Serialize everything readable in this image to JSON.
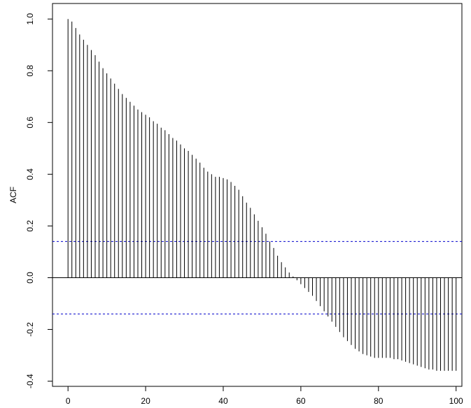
{
  "chart_data": {
    "type": "acf",
    "y_label": "ACF",
    "x": [
      0,
      1,
      2,
      3,
      4,
      5,
      6,
      7,
      8,
      9,
      10,
      11,
      12,
      13,
      14,
      15,
      16,
      17,
      18,
      19,
      20,
      21,
      22,
      23,
      24,
      25,
      26,
      27,
      28,
      29,
      30,
      31,
      32,
      33,
      34,
      35,
      36,
      37,
      38,
      39,
      40,
      41,
      42,
      43,
      44,
      45,
      46,
      47,
      48,
      49,
      50,
      51,
      52,
      53,
      54,
      55,
      56,
      57,
      58,
      59,
      60,
      61,
      62,
      63,
      64,
      65,
      66,
      67,
      68,
      69,
      70,
      71,
      72,
      73,
      74,
      75,
      76,
      77,
      78,
      79,
      80,
      81,
      82,
      83,
      84,
      85,
      86,
      87,
      88,
      89,
      90,
      91,
      92,
      93,
      94,
      95,
      96,
      97,
      98,
      99,
      100
    ],
    "values": [
      1.0,
      0.99,
      0.965,
      0.94,
      0.92,
      0.9,
      0.88,
      0.86,
      0.835,
      0.81,
      0.79,
      0.77,
      0.75,
      0.73,
      0.71,
      0.695,
      0.68,
      0.665,
      0.65,
      0.64,
      0.63,
      0.62,
      0.605,
      0.595,
      0.58,
      0.57,
      0.555,
      0.54,
      0.53,
      0.515,
      0.5,
      0.49,
      0.475,
      0.46,
      0.445,
      0.425,
      0.41,
      0.4,
      0.39,
      0.39,
      0.385,
      0.38,
      0.37,
      0.355,
      0.34,
      0.315,
      0.29,
      0.27,
      0.245,
      0.22,
      0.195,
      0.17,
      0.14,
      0.115,
      0.085,
      0.06,
      0.04,
      0.02,
      0.005,
      -0.01,
      -0.025,
      -0.04,
      -0.055,
      -0.07,
      -0.09,
      -0.11,
      -0.13,
      -0.15,
      -0.17,
      -0.19,
      -0.21,
      -0.23,
      -0.245,
      -0.26,
      -0.275,
      -0.285,
      -0.295,
      -0.3,
      -0.305,
      -0.31,
      -0.31,
      -0.31,
      -0.31,
      -0.31,
      -0.315,
      -0.315,
      -0.32,
      -0.325,
      -0.33,
      -0.335,
      -0.34,
      -0.345,
      -0.35,
      -0.355,
      -0.355,
      -0.36,
      -0.36,
      -0.36,
      -0.36,
      -0.36,
      -0.36
    ],
    "color": "#000000",
    "ci_bounds": [
      0.14,
      -0.14
    ],
    "ci_color": "#0000cc",
    "xlim": [
      -4,
      101.5
    ],
    "ylim": [
      -0.42,
      1.06
    ],
    "xticks": [
      0,
      20,
      40,
      60,
      80,
      100
    ],
    "yticks": [
      {
        "value": -0.4,
        "label": "-0.4"
      },
      {
        "value": -0.2,
        "label": "-0.2"
      },
      {
        "value": 0,
        "label": "0.0"
      },
      0.2,
      0.4,
      0.6,
      0.8,
      {
        "value": 1,
        "label": "1.0"
      }
    ]
  }
}
